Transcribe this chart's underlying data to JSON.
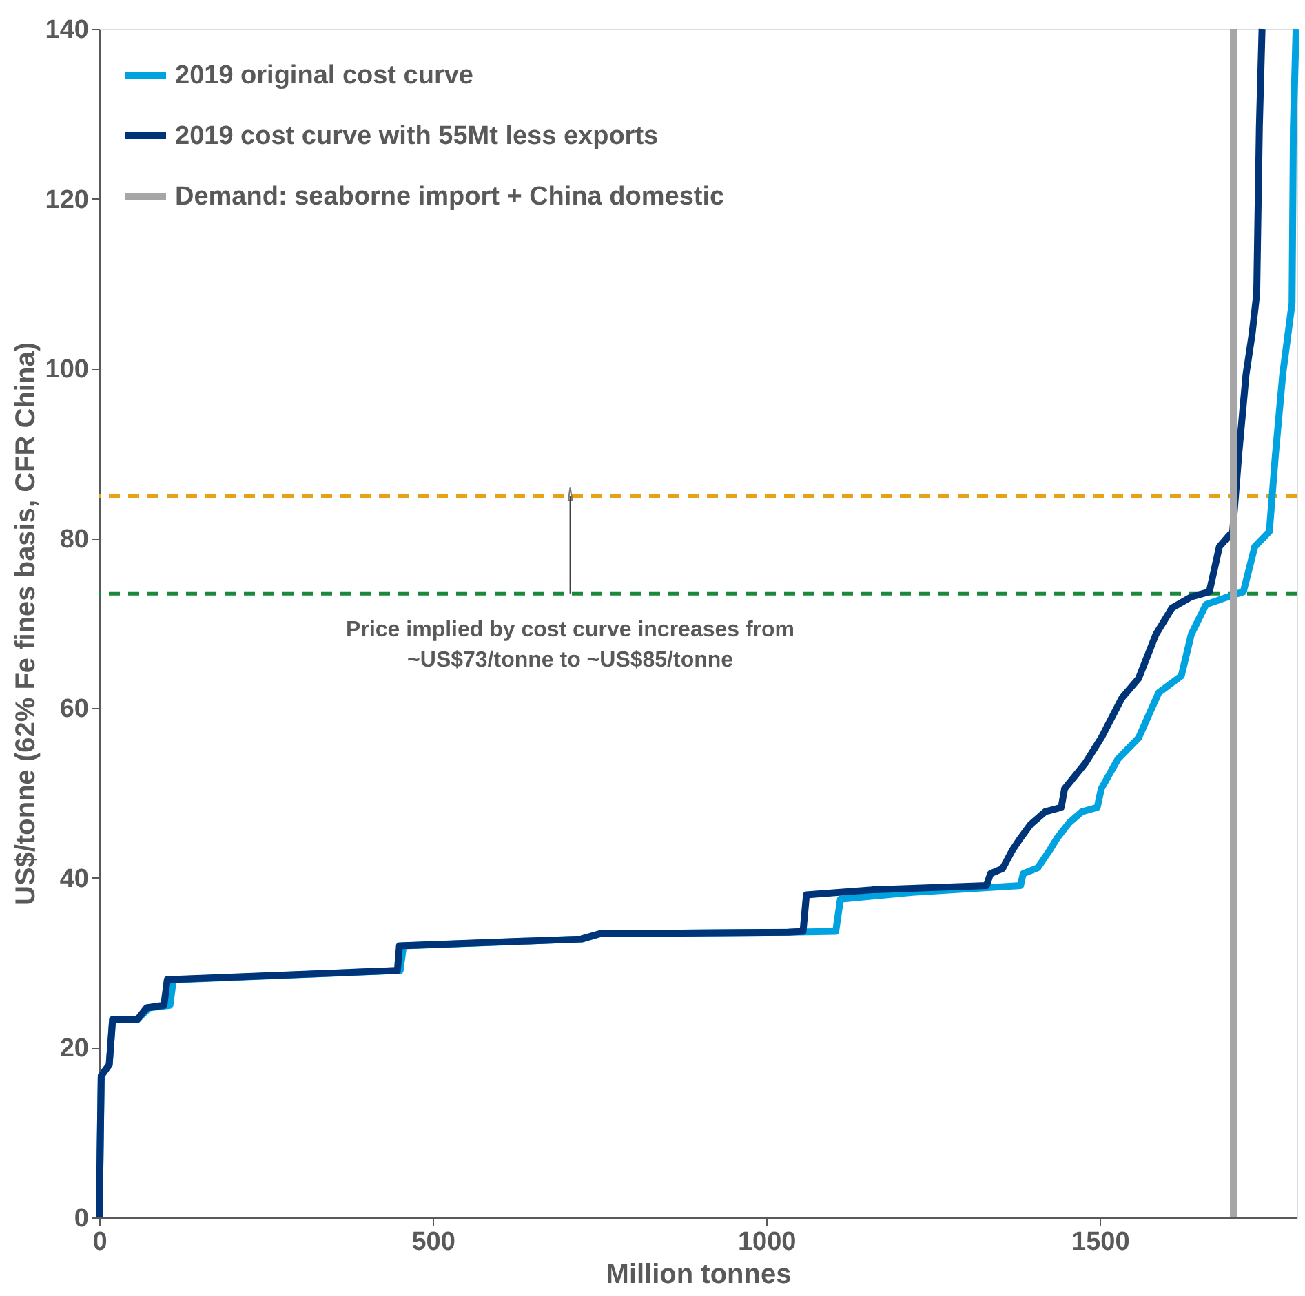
{
  "chart_data": {
    "type": "line",
    "xlabel": "Million tonnes",
    "ylabel": "US$/tonne (62% Fe fines basis, CFR China)",
    "xlim": [
      0,
      1795
    ],
    "xticks": [
      0,
      500,
      1000,
      1500
    ],
    "ylim": [
      0,
      140
    ],
    "yticks": [
      0,
      20,
      40,
      60,
      80,
      100,
      120,
      140
    ],
    "grid": false,
    "legend": "top left",
    "line_style": "solid",
    "marker": "none",
    "series": [
      {
        "name": "2019 original cost curve",
        "color": "#00a3e0",
        "x": [
          0,
          3,
          15,
          20,
          57,
          75,
          106,
          111,
          451,
          456,
          723,
          754,
          872,
          1033,
          1104,
          1111,
          1219,
          1381,
          1385,
          1407,
          1425,
          1436,
          1454,
          1473,
          1496,
          1502,
          1527,
          1558,
          1588,
          1622,
          1637,
          1659,
          1699,
          1715,
          1732,
          1754,
          1763,
          1774,
          1788,
          1790,
          1794
        ],
        "values": [
          0,
          16.7,
          18,
          23.3,
          23.3,
          24.7,
          25,
          28,
          29.1,
          32,
          32.8,
          33.5,
          33.5,
          33.6,
          33.7,
          37.5,
          38.3,
          39.1,
          40.5,
          41.2,
          43.3,
          44.7,
          46.5,
          47.8,
          48.3,
          50.5,
          54,
          56.5,
          61.8,
          63.8,
          68.7,
          72.2,
          73.3,
          73.7,
          79,
          80.8,
          89.8,
          99.3,
          107.7,
          128.5,
          140
        ]
      },
      {
        "name": "2019 cost curve with 55Mt less exports",
        "color": "#003478",
        "x": [
          0,
          3,
          15,
          20,
          57,
          71,
          97,
          102,
          447,
          450,
          723,
          754,
          872,
          1033,
          1055,
          1060,
          1159,
          1330,
          1336,
          1354,
          1369,
          1381,
          1396,
          1418,
          1442,
          1447,
          1478,
          1502,
          1533,
          1558,
          1584,
          1608,
          1637,
          1664,
          1679,
          1699,
          1708,
          1719,
          1728,
          1735,
          1739,
          1743
        ],
        "values": [
          0,
          16.7,
          18,
          23.3,
          23.3,
          24.7,
          25,
          28,
          29.1,
          32,
          32.8,
          33.5,
          33.5,
          33.6,
          33.7,
          38,
          38.6,
          39.1,
          40.5,
          41.1,
          43.3,
          44.7,
          46.3,
          47.8,
          48.3,
          50.5,
          53.5,
          56.5,
          61.2,
          63.5,
          68.7,
          71.8,
          73.1,
          73.7,
          79,
          80.8,
          89.8,
          99.3,
          104,
          108.8,
          128.5,
          140
        ]
      },
      {
        "name": "Demand: seaborne import + China domestic",
        "color": "#a6a6a6",
        "x": [
          1700,
          1700
        ],
        "values": [
          0,
          140
        ]
      }
    ],
    "ref_lines": [
      {
        "axis": "y",
        "value": 85,
        "color": "#e6a118",
        "line_style": "dashed"
      },
      {
        "axis": "y",
        "value": 73.5,
        "color": "#1a8a3a",
        "line_style": "dashed"
      }
    ],
    "annotations": [
      {
        "text": "Price implied by cost curve increases from\n~US$73/tonne to ~US$85/tonne",
        "x": 706,
        "y": 73.5
      }
    ]
  }
}
